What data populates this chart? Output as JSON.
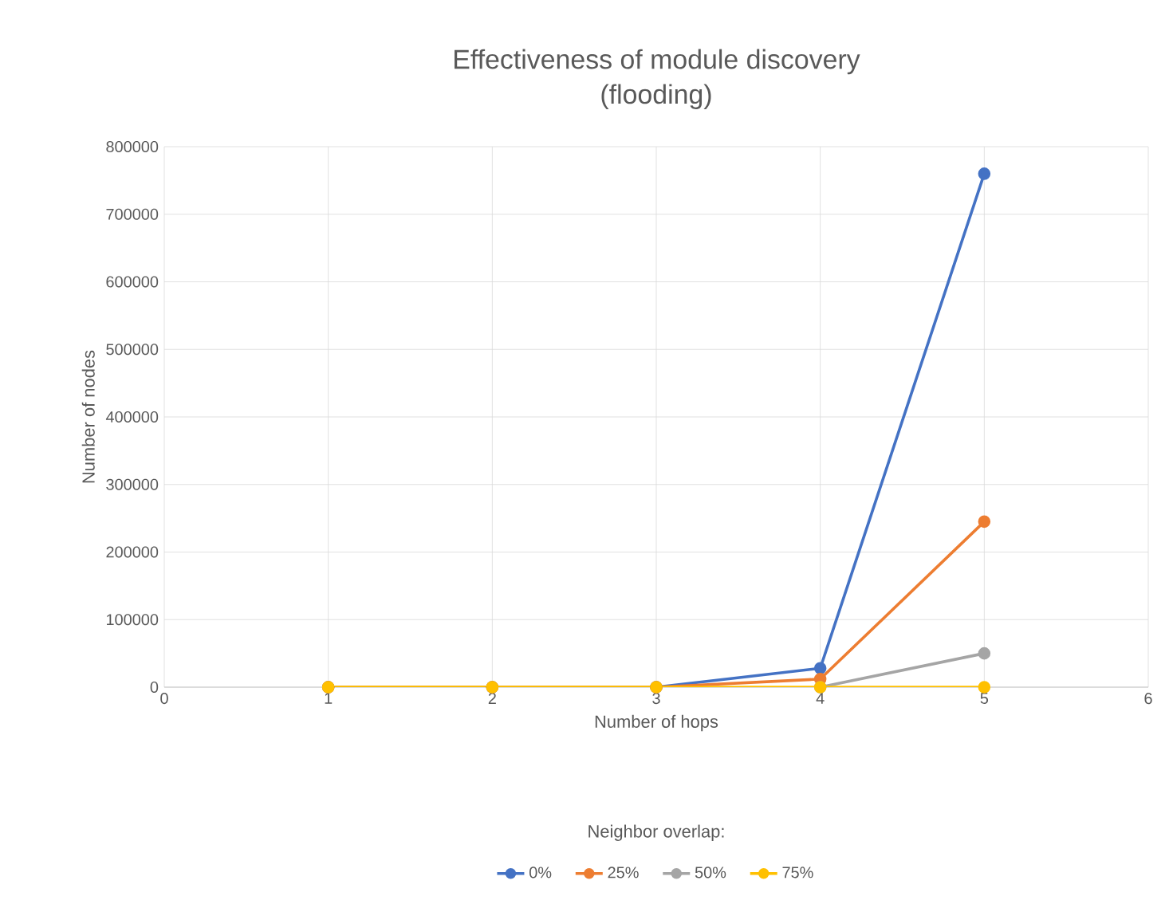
{
  "chart_data": {
    "type": "line",
    "title": "Effectiveness of module discovery\n(flooding)",
    "xlabel": "Number of hops",
    "ylabel": "Number of nodes",
    "legend_title": "Neighbor overlap:",
    "x": [
      1,
      2,
      3,
      4,
      5
    ],
    "series": [
      {
        "name": "0%",
        "color": "#4472c4",
        "values": [
          0,
          0,
          0,
          28000,
          760000
        ]
      },
      {
        "name": "25%",
        "color": "#ed7d31",
        "values": [
          0,
          0,
          0,
          12000,
          245000
        ]
      },
      {
        "name": "50%",
        "color": "#a5a5a5",
        "values": [
          null,
          null,
          null,
          0,
          50000
        ]
      },
      {
        "name": "75%",
        "color": "#ffc000",
        "values": [
          0,
          0,
          0,
          0,
          0
        ]
      }
    ],
    "xlim": [
      0,
      6
    ],
    "xticks": [
      0,
      1,
      2,
      3,
      4,
      5,
      6
    ],
    "ylim": [
      0,
      800000
    ],
    "yticks": [
      0,
      100000,
      200000,
      300000,
      400000,
      500000,
      600000,
      700000,
      800000
    ],
    "grid": true,
    "legend": "bottom",
    "marker": "circle",
    "line_style": "solid"
  }
}
